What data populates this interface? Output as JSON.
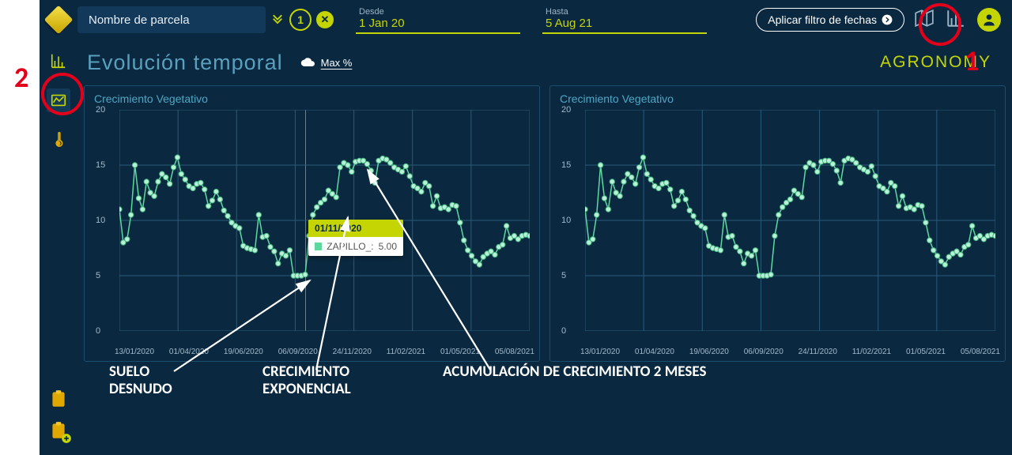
{
  "colors": {
    "bg": "#0a2940",
    "accent": "#c5d503",
    "line": "#5dd9a0",
    "marker_fill": "#b7f2d6",
    "marker_stroke": "#45b380",
    "panel_border": "#1d4d6e",
    "grid": "#2a5a7a",
    "title": "#59a0bf",
    "red": "#e2001a",
    "text_muted": "#a1b9cc"
  },
  "topbar": {
    "parcel_placeholder": "Nombre de parcela",
    "count": "1",
    "from_label": "Desde",
    "from_value": "1 Jan 20",
    "to_label": "Hasta",
    "to_value": "5 Aug 21",
    "apply_label": "Aplicar filtro de fechas"
  },
  "page": {
    "title": "Evolución temporal",
    "max_label": "Max %",
    "brand": "AGRONOMY"
  },
  "annotations": {
    "red1": "1",
    "red2": "2",
    "suelo": "SUELO\nDESNUDO",
    "crec": "CRECIMIENTO\nEXPONENCIAL",
    "acum": "ACUMULACIÓN DE CRECIMIENTO 2 MESES"
  },
  "tooltip": {
    "date": "01/11/2020",
    "series": "ZAPILLO_:",
    "value": "5.00"
  },
  "charts": {
    "title": "Crecimiento Vegetativo",
    "type": "line",
    "ylim": [
      0,
      20
    ],
    "yticks": [
      0,
      5,
      10,
      15,
      20
    ],
    "xtick_labels": [
      "13/01/2020",
      "01/04/2020",
      "19/06/2020",
      "06/09/2020",
      "24/11/2020",
      "11/02/2021",
      "01/05/2021",
      "05/08/2021"
    ],
    "values": [
      11,
      8,
      8.3,
      10.5,
      15,
      12,
      11,
      13.5,
      12.5,
      12.2,
      13.5,
      14.2,
      13.9,
      13.3,
      14.8,
      15.7,
      14.2,
      13.7,
      13.1,
      12.9,
      13.3,
      13.4,
      12.8,
      11.3,
      11.8,
      12.6,
      11.9,
      10.9,
      10.4,
      9.8,
      9.5,
      9.3,
      7.7,
      7.5,
      7.4,
      7.3,
      10.5,
      8.5,
      8.6,
      7.6,
      7.2,
      6.1,
      7.0,
      6.8,
      7.3,
      5.0,
      5.0,
      5.0,
      5.1,
      8.6,
      10.5,
      11.2,
      11.6,
      11.9,
      12.7,
      12.4,
      12.1,
      14.8,
      15.2,
      15.0,
      14.4,
      15.3,
      15.4,
      15.4,
      15.1,
      14.5,
      13.4,
      15.4,
      15.6,
      15.5,
      15.2,
      14.8,
      14.6,
      14.4,
      14.9,
      14.0,
      13.1,
      12.9,
      12.6,
      13.4,
      13.1,
      11.3,
      12.2,
      11.1,
      11.2,
      11.0,
      11.4,
      11.3,
      9.8,
      8.2,
      7.3,
      6.8,
      6.3,
      6.0,
      6.7,
      7.0,
      7.2,
      6.9,
      7.6,
      7.8,
      9.5,
      8.4,
      8.6,
      8.3,
      8.6,
      8.7,
      8.6
    ]
  }
}
